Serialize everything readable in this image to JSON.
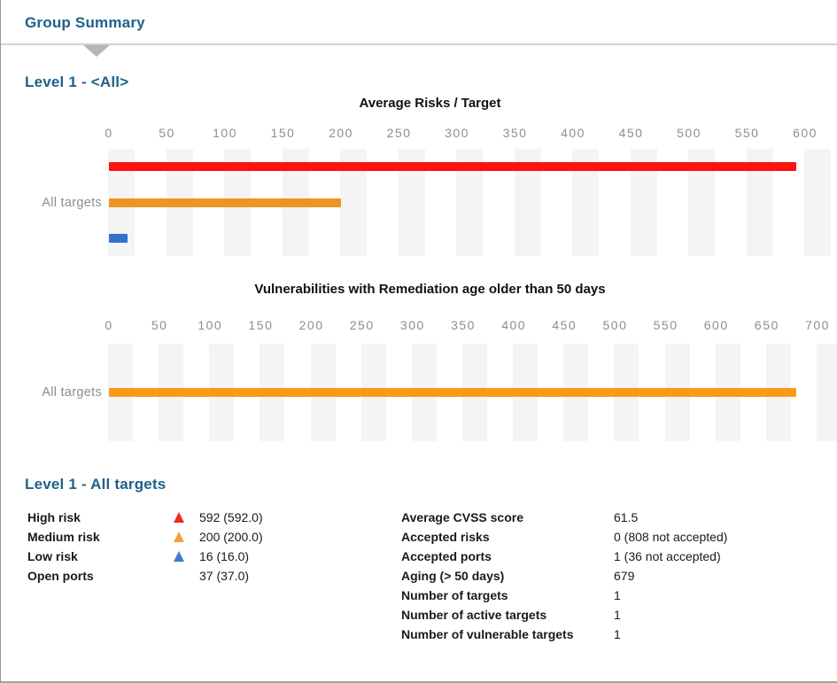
{
  "header": {
    "title": "Group Summary"
  },
  "sections": {
    "level1_all_heading": "Level 1 - <All>",
    "level1_targets_heading": "Level 1 - All targets"
  },
  "colors": {
    "accent": "#20618a",
    "high_risk": "#fb1410",
    "medium_risk": "#ec9521",
    "low_risk": "#3372cb",
    "aging_bar": "#fb9a19"
  },
  "chart_data": [
    {
      "type": "bar",
      "orientation": "horizontal",
      "title": "Average Risks / Target",
      "categories": [
        "All targets"
      ],
      "series": [
        {
          "name": "High risk",
          "color": "#fb1410",
          "values": [
            592
          ]
        },
        {
          "name": "Medium risk",
          "color": "#ec9521",
          "values": [
            200
          ]
        },
        {
          "name": "Low risk",
          "color": "#3372cb",
          "values": [
            16
          ]
        }
      ],
      "xlim": [
        0,
        600
      ],
      "ticks": [
        0,
        50,
        100,
        150,
        200,
        250,
        300,
        350,
        400,
        450,
        500,
        550,
        600
      ],
      "grid": "vertical-stripes",
      "legend_position": "none"
    },
    {
      "type": "bar",
      "orientation": "horizontal",
      "title": "Vulnerabilities with Remediation age older than 50 days",
      "categories": [
        "All targets"
      ],
      "series": [
        {
          "name": "Aging",
          "color": "#fb9a19",
          "values": [
            679
          ]
        }
      ],
      "xlim": [
        0,
        700
      ],
      "ticks": [
        0,
        50,
        100,
        150,
        200,
        250,
        300,
        350,
        400,
        450,
        500,
        550,
        600,
        650,
        700
      ],
      "grid": "vertical-stripes",
      "legend_position": "none"
    }
  ],
  "summary": {
    "risk_rows": [
      {
        "label": "High risk",
        "marker": "triangle",
        "marker_color": "#f3271d",
        "value": "592 (592.0)"
      },
      {
        "label": "Medium risk",
        "marker": "triangle",
        "marker_color": "#f0a040",
        "value": "200 (200.0)"
      },
      {
        "label": "Low risk",
        "marker": "triangle",
        "marker_color": "#4578cd",
        "value": "16 (16.0)"
      },
      {
        "label": "Open ports",
        "marker": "none",
        "marker_color": "",
        "value": "37 (37.0)"
      }
    ],
    "target_rows": [
      {
        "label": "Average CVSS score",
        "value": "61.5"
      },
      {
        "label": "Accepted risks",
        "value": "0 (808 not accepted)"
      },
      {
        "label": "Accepted ports",
        "value": "1 (36 not accepted)"
      },
      {
        "label": "Aging (> 50 days)",
        "value": "679"
      },
      {
        "label": "Number of targets",
        "value": "1"
      },
      {
        "label": "Number of active targets",
        "value": "1"
      },
      {
        "label": "Number of vulnerable targets",
        "value": "1"
      }
    ]
  }
}
